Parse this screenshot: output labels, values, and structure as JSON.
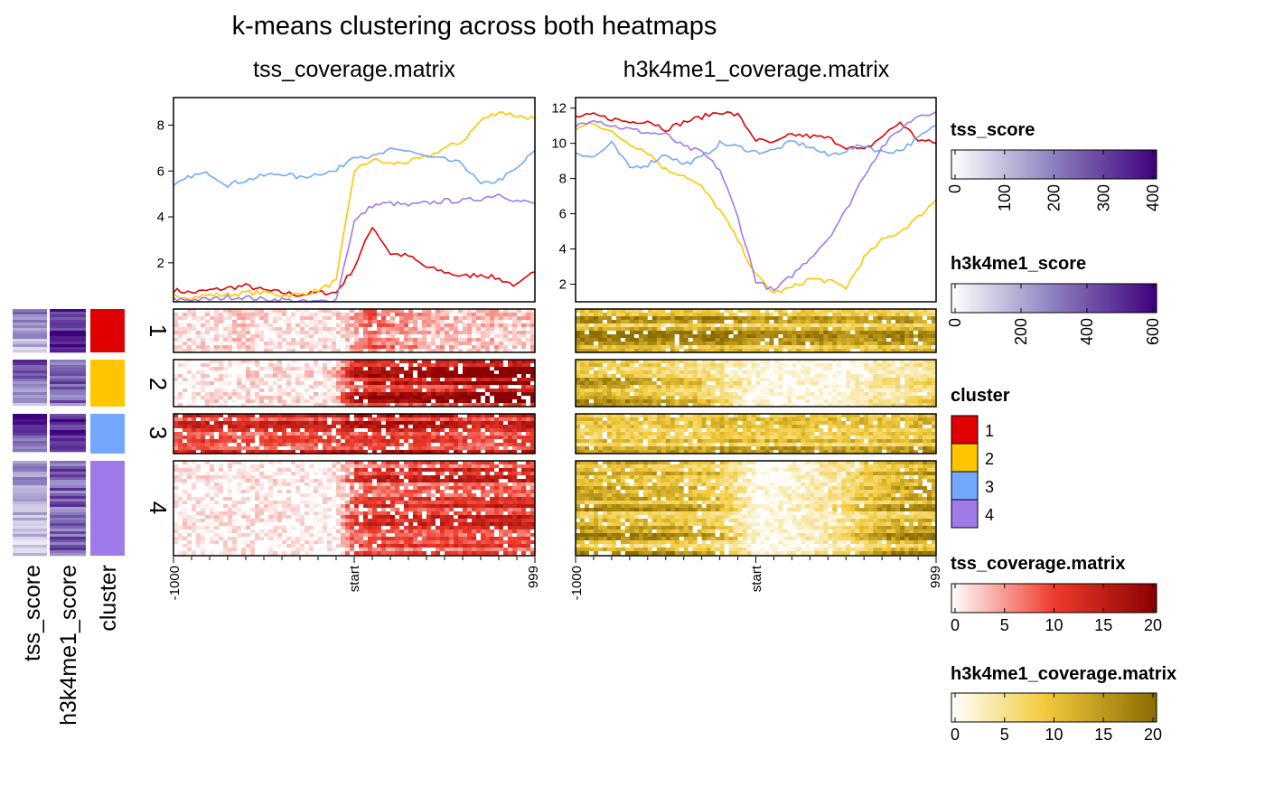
{
  "title": "k-means clustering across both heatmaps",
  "panels": [
    {
      "title": "tss_coverage.matrix",
      "xticks": [
        "-1000",
        "start",
        "999"
      ]
    },
    {
      "title": "h3k4me1_coverage.matrix",
      "xticks": [
        "-1000",
        "start",
        "999"
      ]
    }
  ],
  "row_annotations": [
    {
      "label": "tss_score"
    },
    {
      "label": "h3k4me1_score"
    },
    {
      "label": "cluster"
    }
  ],
  "clusters": [
    "1",
    "2",
    "3",
    "4"
  ],
  "colors": {
    "cluster": [
      "#e00000",
      "#ffc600",
      "#74a8ff",
      "#9f7bea"
    ],
    "tss_score_low": "#ffffff",
    "tss_score_high": "#3f007d",
    "h3k4me1_score_low": "#ffffff",
    "h3k4me1_score_high": "#3f007d",
    "tss_cov_low": "#ffffff",
    "tss_cov_mid": "#ef3b2c",
    "tss_cov_high": "#8b0000",
    "h3k_cov_low": "#ffffff",
    "h3k_cov_mid": "#f2cb3c",
    "h3k_cov_high": "#8b6c00"
  },
  "legends": [
    {
      "title": "tss_score",
      "ticks": [
        "0",
        "100",
        "200",
        "300",
        "400"
      ],
      "range": [
        0,
        400
      ]
    },
    {
      "title": "h3k4me1_score",
      "ticks": [
        "0",
        "200",
        "400",
        "600"
      ],
      "range": [
        0,
        600
      ]
    },
    {
      "title": "cluster",
      "items": [
        "1",
        "2",
        "3",
        "4"
      ]
    },
    {
      "title": "tss_coverage.matrix",
      "ticks": [
        "0",
        "5",
        "10",
        "15",
        "20"
      ],
      "range": [
        0,
        20
      ]
    },
    {
      "title": "h3k4me1_coverage.matrix",
      "ticks": [
        "0",
        "5",
        "10",
        "15",
        "20"
      ],
      "range": [
        0,
        20
      ]
    }
  ],
  "chart_data": [
    {
      "type": "line",
      "title": "tss_coverage.matrix",
      "xlabel": "",
      "ylabel": "",
      "xlim": [
        -1000,
        999
      ],
      "ylim": [
        0.3,
        9.2
      ],
      "yticks": [
        2,
        4,
        6,
        8
      ],
      "x": [
        -1000,
        -900,
        -800,
        -700,
        -600,
        -500,
        -400,
        -300,
        -200,
        -100,
        0,
        100,
        200,
        300,
        400,
        500,
        600,
        700,
        800,
        900,
        999
      ],
      "series": [
        {
          "name": "1",
          "values": [
            0.8,
            0.7,
            0.8,
            0.9,
            1.0,
            0.8,
            0.7,
            0.6,
            0.7,
            0.7,
            1.8,
            3.6,
            2.4,
            2.3,
            1.8,
            1.6,
            1.4,
            1.5,
            1.3,
            1.0,
            1.6
          ]
        },
        {
          "name": "2",
          "values": [
            0.6,
            0.5,
            0.6,
            0.6,
            0.7,
            0.7,
            0.6,
            0.6,
            0.8,
            1.2,
            6.0,
            6.5,
            6.3,
            6.4,
            6.6,
            7.0,
            7.3,
            8.2,
            8.6,
            8.4,
            8.3
          ]
        },
        {
          "name": "3",
          "values": [
            5.3,
            5.8,
            5.9,
            5.4,
            5.6,
            5.8,
            5.9,
            5.7,
            5.9,
            6.0,
            6.7,
            6.6,
            6.9,
            6.9,
            6.6,
            6.5,
            6.3,
            5.4,
            5.6,
            6.1,
            6.9
          ]
        },
        {
          "name": "4",
          "values": [
            0.4,
            0.4,
            0.4,
            0.5,
            0.5,
            0.4,
            0.4,
            0.3,
            0.3,
            0.4,
            3.8,
            4.5,
            4.6,
            4.5,
            4.6,
            4.7,
            4.7,
            4.8,
            5.0,
            4.7,
            4.6
          ]
        }
      ]
    },
    {
      "type": "line",
      "title": "h3k4me1_coverage.matrix",
      "xlabel": "",
      "ylabel": "",
      "xlim": [
        -1000,
        999
      ],
      "ylim": [
        1.0,
        12.6
      ],
      "yticks": [
        2,
        4,
        6,
        8,
        10,
        12
      ],
      "x": [
        -1000,
        -900,
        -800,
        -700,
        -600,
        -500,
        -400,
        -300,
        -200,
        -100,
        0,
        100,
        200,
        300,
        400,
        500,
        600,
        700,
        800,
        900,
        999
      ],
      "series": [
        {
          "name": "1",
          "values": [
            11.5,
            11.6,
            11.4,
            11.2,
            11.3,
            10.8,
            11.2,
            11.5,
            11.8,
            11.6,
            10.2,
            10.0,
            10.5,
            10.4,
            10.3,
            9.8,
            9.6,
            10.4,
            11.2,
            10.2,
            10.0
          ]
        },
        {
          "name": "2",
          "values": [
            10.8,
            11.2,
            10.6,
            10.0,
            9.5,
            8.5,
            8.2,
            7.5,
            6.2,
            4.5,
            2.5,
            1.5,
            1.8,
            2.3,
            2.2,
            1.8,
            3.5,
            4.5,
            5.0,
            5.8,
            6.8
          ]
        },
        {
          "name": "3",
          "values": [
            9.5,
            9.2,
            10.0,
            8.6,
            8.8,
            9.4,
            8.8,
            9.2,
            10.0,
            9.8,
            9.5,
            9.6,
            10.1,
            9.8,
            9.3,
            9.6,
            9.9,
            9.5,
            9.6,
            10.3,
            11.0
          ]
        },
        {
          "name": "4",
          "values": [
            11.0,
            11.4,
            11.0,
            10.8,
            10.6,
            10.5,
            9.8,
            9.5,
            8.5,
            5.8,
            2.2,
            1.6,
            2.5,
            3.5,
            4.6,
            6.2,
            8.2,
            9.8,
            10.8,
            11.6,
            11.8
          ]
        }
      ]
    }
  ]
}
